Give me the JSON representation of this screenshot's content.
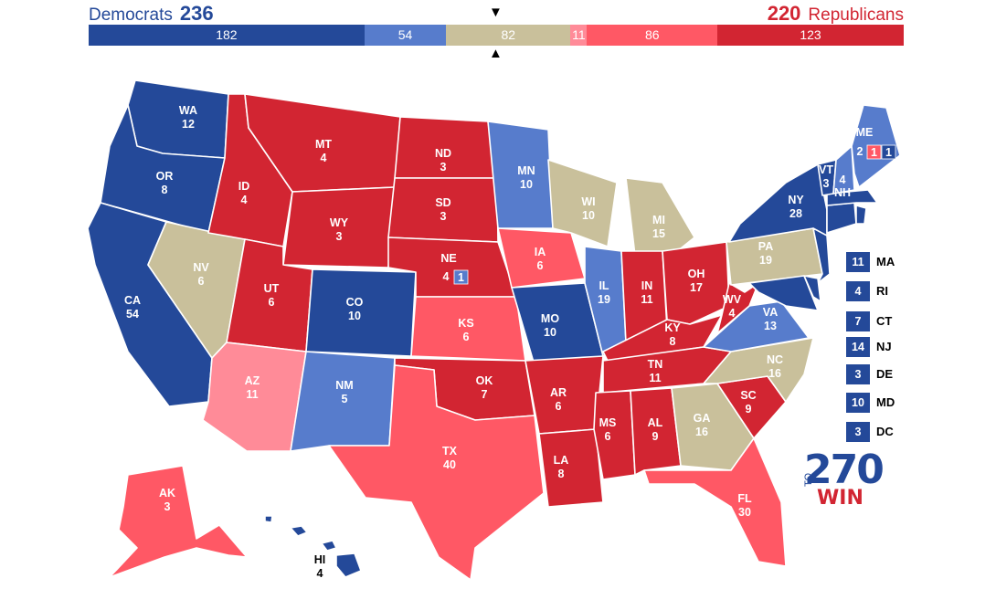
{
  "header": {
    "dem_label": "Democrats",
    "dem_total": "236",
    "rep_label": "Republicans",
    "rep_total": "220"
  },
  "bar": [
    {
      "label": "182",
      "value": 182,
      "color": "#244999"
    },
    {
      "label": "54",
      "value": 54,
      "color": "#577ccc"
    },
    {
      "label": "82",
      "value": 82,
      "color": "#c9c09b"
    },
    {
      "label": "11",
      "value": 11,
      "color": "#ff8b98"
    },
    {
      "label": "86",
      "value": 86,
      "color": "#ff5865"
    },
    {
      "label": "123",
      "value": 123,
      "color": "#d22532"
    }
  ],
  "colors": {
    "safe_d": "#244999",
    "likely_d": "#577ccc",
    "tossup": "#c9c09b",
    "lean_r": "#ff8b98",
    "likely_r": "#ff5865",
    "safe_r": "#d22532"
  },
  "states": {
    "WA": {
      "abbr": "WA",
      "ev": "12"
    },
    "OR": {
      "abbr": "OR",
      "ev": "8"
    },
    "CA": {
      "abbr": "CA",
      "ev": "54"
    },
    "NV": {
      "abbr": "NV",
      "ev": "6"
    },
    "ID": {
      "abbr": "ID",
      "ev": "4"
    },
    "MT": {
      "abbr": "MT",
      "ev": "4"
    },
    "WY": {
      "abbr": "WY",
      "ev": "3"
    },
    "UT": {
      "abbr": "UT",
      "ev": "6"
    },
    "AZ": {
      "abbr": "AZ",
      "ev": "11"
    },
    "CO": {
      "abbr": "CO",
      "ev": "10"
    },
    "NM": {
      "abbr": "NM",
      "ev": "5"
    },
    "ND": {
      "abbr": "ND",
      "ev": "3"
    },
    "SD": {
      "abbr": "SD",
      "ev": "3"
    },
    "NE": {
      "abbr": "NE",
      "ev": "4",
      "ev2": "1"
    },
    "KS": {
      "abbr": "KS",
      "ev": "6"
    },
    "OK": {
      "abbr": "OK",
      "ev": "7"
    },
    "TX": {
      "abbr": "TX",
      "ev": "40"
    },
    "MN": {
      "abbr": "MN",
      "ev": "10"
    },
    "IA": {
      "abbr": "IA",
      "ev": "6"
    },
    "MO": {
      "abbr": "MO",
      "ev": "10"
    },
    "AR": {
      "abbr": "AR",
      "ev": "6"
    },
    "LA": {
      "abbr": "LA",
      "ev": "8"
    },
    "WI": {
      "abbr": "WI",
      "ev": "10"
    },
    "IL": {
      "abbr": "IL",
      "ev": "19"
    },
    "MI": {
      "abbr": "MI",
      "ev": "15"
    },
    "IN": {
      "abbr": "IN",
      "ev": "11"
    },
    "OH": {
      "abbr": "OH",
      "ev": "17"
    },
    "KY": {
      "abbr": "KY",
      "ev": "8"
    },
    "TN": {
      "abbr": "TN",
      "ev": "11"
    },
    "MS": {
      "abbr": "MS",
      "ev": "6"
    },
    "AL": {
      "abbr": "AL",
      "ev": "9"
    },
    "GA": {
      "abbr": "GA",
      "ev": "16"
    },
    "FL": {
      "abbr": "FL",
      "ev": "30"
    },
    "SC": {
      "abbr": "SC",
      "ev": "9"
    },
    "NC": {
      "abbr": "NC",
      "ev": "16"
    },
    "VA": {
      "abbr": "VA",
      "ev": "13"
    },
    "WV": {
      "abbr": "WV",
      "ev": "4"
    },
    "PA": {
      "abbr": "PA",
      "ev": "19"
    },
    "NY": {
      "abbr": "NY",
      "ev": "28"
    },
    "VT": {
      "abbr": "VT",
      "ev": "3"
    },
    "NH": {
      "abbr": "NH",
      "ev": "4"
    },
    "ME": {
      "abbr": "ME",
      "ev": "2",
      "ev_r": "1",
      "ev_d": "1"
    },
    "AK": {
      "abbr": "AK",
      "ev": "3"
    },
    "HI": {
      "abbr": "HI",
      "ev": "4"
    }
  },
  "small_states": [
    {
      "abbr": "MA",
      "ev": "11"
    },
    {
      "abbr": "RI",
      "ev": "4"
    },
    {
      "abbr": "CT",
      "ev": "7"
    },
    {
      "abbr": "NJ",
      "ev": "14"
    },
    {
      "abbr": "DE",
      "ev": "3"
    },
    {
      "abbr": "MD",
      "ev": "10"
    },
    {
      "abbr": "DC",
      "ev": "3"
    }
  ],
  "logo": {
    "number": "270",
    "to": "TO",
    "win": "WIN"
  }
}
